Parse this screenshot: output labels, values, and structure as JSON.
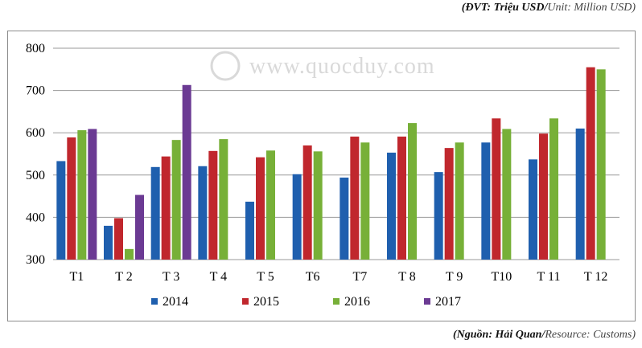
{
  "unit_note": {
    "vn": "(ĐVT: Triệu USD/",
    "en": "Unit: Million USD)"
  },
  "source_note": {
    "vn": "(Nguồn: Hải Quan/",
    "en": "Resource: Customs)"
  },
  "watermark": "www.quocduy.com",
  "chart_data": {
    "type": "bar",
    "categories": [
      "T1",
      "T 2",
      "T 3",
      "T 4",
      "T 5",
      "T6",
      "T7",
      "T 8",
      "T 9",
      "T10",
      "T 11",
      "T 12"
    ],
    "ylim": [
      300,
      800
    ],
    "yticks": [
      300,
      400,
      500,
      600,
      700,
      800
    ],
    "grid": true,
    "legend_position": "bottom",
    "series": [
      {
        "name": "2014",
        "color": "#1f5fae",
        "values": [
          533,
          380,
          519,
          521,
          437,
          502,
          494,
          553,
          507,
          577,
          537,
          610
        ]
      },
      {
        "name": "2015",
        "color": "#c0272d",
        "values": [
          589,
          398,
          544,
          557,
          542,
          570,
          591,
          591,
          564,
          634,
          598,
          755
        ]
      },
      {
        "name": "2016",
        "color": "#77b038",
        "values": [
          606,
          325,
          583,
          585,
          558,
          556,
          577,
          623,
          577,
          609,
          634,
          750
        ]
      },
      {
        "name": "2017",
        "color": "#6b3a93",
        "values": [
          609,
          453,
          713,
          null,
          null,
          null,
          null,
          null,
          null,
          null,
          null,
          null
        ]
      }
    ]
  }
}
